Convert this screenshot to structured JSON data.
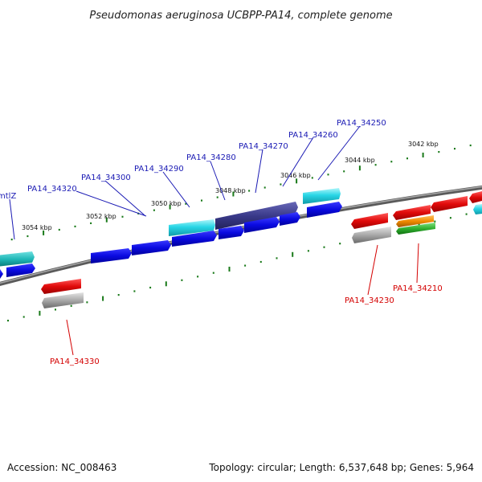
{
  "title": "Pseudomonas aeruginosa UCBPP-PA14, complete genome",
  "footer": {
    "accession": "Accession: NC_008463",
    "summary": "Topology: circular; Length: 6,537,648 bp; Genes: 5,964"
  },
  "scale_labels": [
    "3054 kbp",
    "3052 kbp",
    "3050 kbp",
    "3048 kbp",
    "3046 kbp",
    "3044 kbp",
    "3042 kbp"
  ],
  "top_gene_labels": [
    "mtlZ",
    "PA14_34320",
    "PA14_34300",
    "PA14_34290",
    "PA14_34280",
    "PA14_34270",
    "PA14_34260",
    "PA14_34250"
  ],
  "bottom_gene_labels": [
    "PA14_34330",
    "PA14_34230",
    "PA14_34210"
  ],
  "colors": {
    "forward_gene": "#1010e0",
    "forward_highlight": "#3a3a8a",
    "cyan_gene": "#20d0e0",
    "teal_gene": "#20b8b8",
    "reverse_gene": "#e01010",
    "gray_gene": "#a0a0a0",
    "orange_gene": "#f08a00",
    "green_gene": "#30b030",
    "backbone": "#808080",
    "tick": "#1a7a1a",
    "top_label": "#1a1ab4",
    "bottom_label": "#d40000"
  }
}
